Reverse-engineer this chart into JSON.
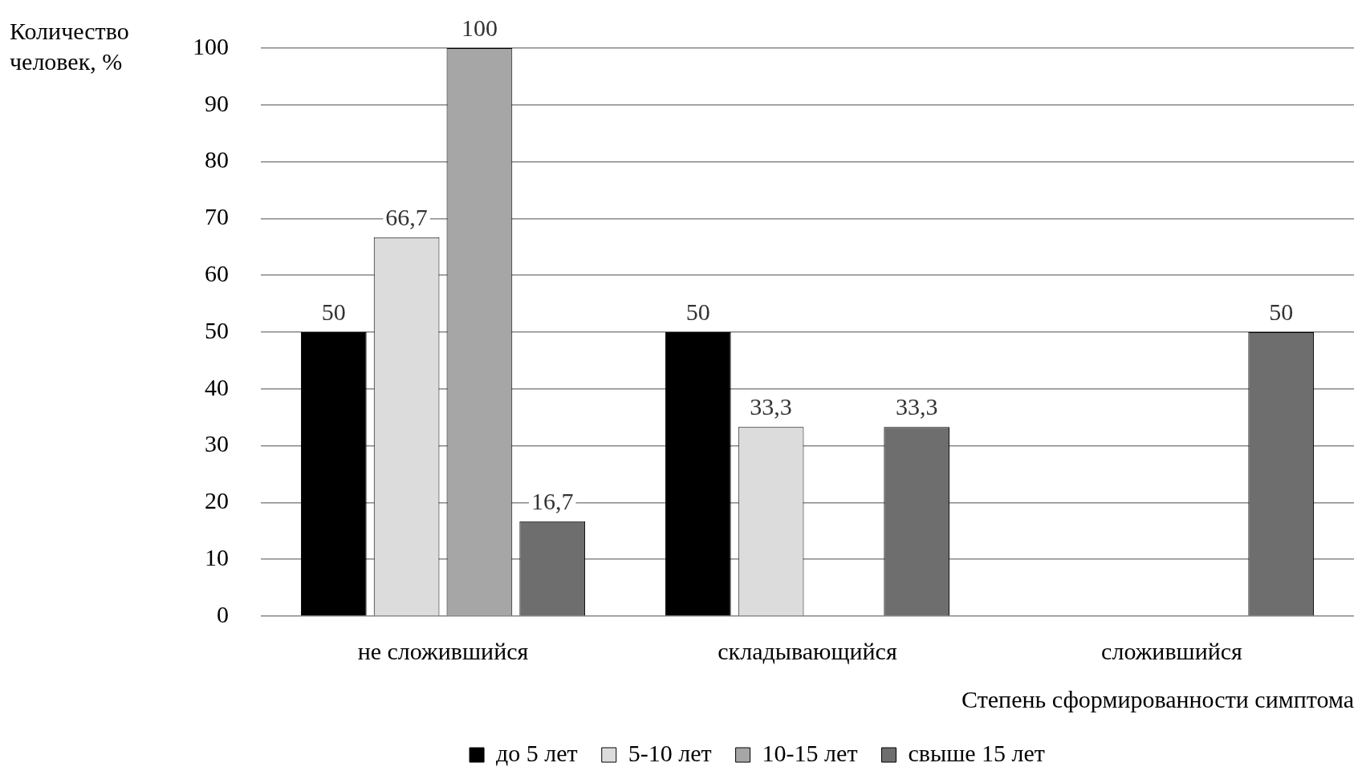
{
  "chart_data": {
    "type": "bar",
    "xlabel": "Степень сформированности симптома",
    "ylabel": "Количество человек, %",
    "categories": [
      "не сложившийся",
      "складывающийся",
      "сложившийся"
    ],
    "series": [
      {
        "name": "до 5 лет",
        "color": "#000000",
        "values": [
          50,
          50,
          0
        ],
        "value_labels": [
          "50",
          "50",
          null
        ]
      },
      {
        "name": "5-10 лет",
        "color": "#dcdcdc",
        "values": [
          66.7,
          33.3,
          0
        ],
        "value_labels": [
          "66,7",
          "33,3",
          null
        ]
      },
      {
        "name": "10-15 лет",
        "color": "#a6a6a6",
        "values": [
          100,
          0,
          0
        ],
        "value_labels": [
          "100",
          null,
          null
        ]
      },
      {
        "name": "свыше 15 лет",
        "color": "#6e6e6e",
        "values": [
          16.7,
          33.3,
          50
        ],
        "value_labels": [
          "16,7",
          "33,3",
          "50"
        ]
      }
    ],
    "ylim": [
      0,
      100
    ],
    "yticks": [
      0,
      10,
      20,
      30,
      40,
      50,
      60,
      70,
      80,
      90,
      100
    ],
    "grid": "y",
    "legend": "bottom"
  }
}
